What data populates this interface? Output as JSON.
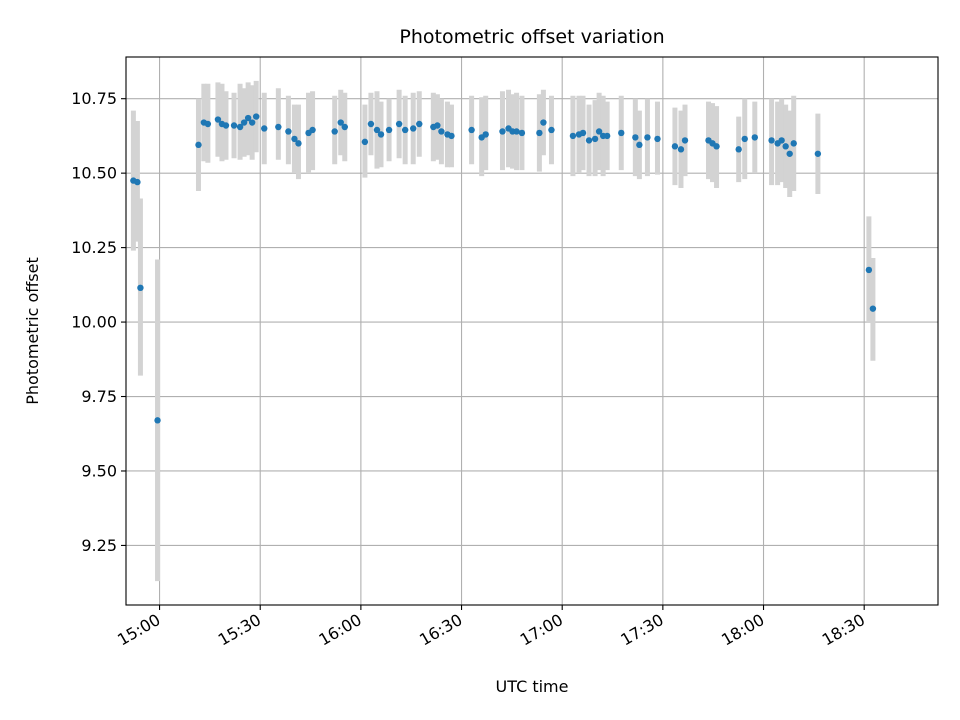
{
  "chart_data": {
    "type": "scatter",
    "title": "Photometric offset variation",
    "xlabel": "UTC time",
    "ylabel": "Photometric offset",
    "grid": true,
    "xlim": [
      "14:50",
      "18:52"
    ],
    "ylim": [
      9.05,
      10.89
    ],
    "x_ticks": [
      "15:00",
      "15:30",
      "16:00",
      "16:30",
      "17:00",
      "17:30",
      "18:00",
      "18:30"
    ],
    "y_ticks": [
      "9.25",
      "9.50",
      "9.75",
      "10.00",
      "10.25",
      "10.50",
      "10.75"
    ],
    "colors": {
      "point": "#1f77b4",
      "errorbar": "#d3d3d3",
      "grid": "#b0b0b0"
    },
    "series": [
      {
        "points": [
          {
            "t": "14:52:12",
            "y": 10.475,
            "lo": 10.24,
            "hi": 10.71
          },
          {
            "t": "14:53:24",
            "y": 10.47,
            "lo": 10.27,
            "hi": 10.675
          },
          {
            "t": "14:54:18",
            "y": 10.115,
            "lo": 9.82,
            "hi": 10.415
          },
          {
            "t": "14:59:24",
            "y": 9.67,
            "lo": 9.13,
            "hi": 10.21
          },
          {
            "t": "15:11:36",
            "y": 10.595,
            "lo": 10.44,
            "hi": 10.75
          },
          {
            "t": "15:13:12",
            "y": 10.67,
            "lo": 10.54,
            "hi": 10.8
          },
          {
            "t": "15:14:24",
            "y": 10.665,
            "lo": 10.535,
            "hi": 10.8
          },
          {
            "t": "15:17:24",
            "y": 10.68,
            "lo": 10.555,
            "hi": 10.805
          },
          {
            "t": "15:18:36",
            "y": 10.665,
            "lo": 10.54,
            "hi": 10.8
          },
          {
            "t": "15:19:48",
            "y": 10.66,
            "lo": 10.545,
            "hi": 10.775
          },
          {
            "t": "15:22:12",
            "y": 10.66,
            "lo": 10.55,
            "hi": 10.77
          },
          {
            "t": "15:24:00",
            "y": 10.655,
            "lo": 10.545,
            "hi": 10.8
          },
          {
            "t": "15:25:12",
            "y": 10.67,
            "lo": 10.555,
            "hi": 10.785
          },
          {
            "t": "15:26:24",
            "y": 10.685,
            "lo": 10.56,
            "hi": 10.805
          },
          {
            "t": "15:27:36",
            "y": 10.67,
            "lo": 10.545,
            "hi": 10.795
          },
          {
            "t": "15:28:48",
            "y": 10.69,
            "lo": 10.57,
            "hi": 10.81
          },
          {
            "t": "15:31:12",
            "y": 10.65,
            "lo": 10.53,
            "hi": 10.77
          },
          {
            "t": "15:35:24",
            "y": 10.655,
            "lo": 10.545,
            "hi": 10.785
          },
          {
            "t": "15:38:24",
            "y": 10.64,
            "lo": 10.53,
            "hi": 10.76
          },
          {
            "t": "15:40:12",
            "y": 10.615,
            "lo": 10.5,
            "hi": 10.73
          },
          {
            "t": "15:41:24",
            "y": 10.6,
            "lo": 10.48,
            "hi": 10.73
          },
          {
            "t": "15:44:24",
            "y": 10.635,
            "lo": 10.5,
            "hi": 10.77
          },
          {
            "t": "15:45:36",
            "y": 10.645,
            "lo": 10.51,
            "hi": 10.775
          },
          {
            "t": "15:52:12",
            "y": 10.64,
            "lo": 10.53,
            "hi": 10.76
          },
          {
            "t": "15:54:00",
            "y": 10.67,
            "lo": 10.56,
            "hi": 10.78
          },
          {
            "t": "15:55:12",
            "y": 10.655,
            "lo": 10.54,
            "hi": 10.77
          },
          {
            "t": "16:01:12",
            "y": 10.605,
            "lo": 10.485,
            "hi": 10.73
          },
          {
            "t": "16:03:00",
            "y": 10.665,
            "lo": 10.56,
            "hi": 10.77
          },
          {
            "t": "16:04:48",
            "y": 10.645,
            "lo": 10.515,
            "hi": 10.775
          },
          {
            "t": "16:06:00",
            "y": 10.63,
            "lo": 10.52,
            "hi": 10.74
          },
          {
            "t": "16:08:24",
            "y": 10.645,
            "lo": 10.54,
            "hi": 10.75
          },
          {
            "t": "16:11:24",
            "y": 10.665,
            "lo": 10.55,
            "hi": 10.78
          },
          {
            "t": "16:13:12",
            "y": 10.645,
            "lo": 10.53,
            "hi": 10.76
          },
          {
            "t": "16:15:36",
            "y": 10.65,
            "lo": 10.53,
            "hi": 10.77
          },
          {
            "t": "16:17:24",
            "y": 10.665,
            "lo": 10.555,
            "hi": 10.775
          },
          {
            "t": "16:21:36",
            "y": 10.655,
            "lo": 10.54,
            "hi": 10.77
          },
          {
            "t": "16:22:48",
            "y": 10.66,
            "lo": 10.545,
            "hi": 10.765
          },
          {
            "t": "16:24:00",
            "y": 10.64,
            "lo": 10.53,
            "hi": 10.75
          },
          {
            "t": "16:25:48",
            "y": 10.63,
            "lo": 10.52,
            "hi": 10.74
          },
          {
            "t": "16:27:00",
            "y": 10.625,
            "lo": 10.52,
            "hi": 10.73
          },
          {
            "t": "16:33:00",
            "y": 10.645,
            "lo": 10.53,
            "hi": 10.76
          },
          {
            "t": "16:36:00",
            "y": 10.62,
            "lo": 10.49,
            "hi": 10.755
          },
          {
            "t": "16:37:12",
            "y": 10.63,
            "lo": 10.51,
            "hi": 10.76
          },
          {
            "t": "16:42:12",
            "y": 10.64,
            "lo": 10.51,
            "hi": 10.775
          },
          {
            "t": "16:44:00",
            "y": 10.65,
            "lo": 10.52,
            "hi": 10.78
          },
          {
            "t": "16:45:12",
            "y": 10.64,
            "lo": 10.515,
            "hi": 10.765
          },
          {
            "t": "16:46:24",
            "y": 10.64,
            "lo": 10.51,
            "hi": 10.77
          },
          {
            "t": "16:48:00",
            "y": 10.635,
            "lo": 10.51,
            "hi": 10.76
          },
          {
            "t": "16:53:12",
            "y": 10.635,
            "lo": 10.505,
            "hi": 10.765
          },
          {
            "t": "16:54:24",
            "y": 10.67,
            "lo": 10.56,
            "hi": 10.78
          },
          {
            "t": "16:56:48",
            "y": 10.645,
            "lo": 10.53,
            "hi": 10.76
          },
          {
            "t": "17:03:12",
            "y": 10.625,
            "lo": 10.49,
            "hi": 10.76
          },
          {
            "t": "17:05:00",
            "y": 10.63,
            "lo": 10.5,
            "hi": 10.76
          },
          {
            "t": "17:06:12",
            "y": 10.635,
            "lo": 10.51,
            "hi": 10.76
          },
          {
            "t": "17:08:00",
            "y": 10.61,
            "lo": 10.49,
            "hi": 10.73
          },
          {
            "t": "17:09:48",
            "y": 10.615,
            "lo": 10.49,
            "hi": 10.745
          },
          {
            "t": "17:11:00",
            "y": 10.64,
            "lo": 10.51,
            "hi": 10.77
          },
          {
            "t": "17:12:12",
            "y": 10.625,
            "lo": 10.49,
            "hi": 10.76
          },
          {
            "t": "17:13:24",
            "y": 10.625,
            "lo": 10.51,
            "hi": 10.74
          },
          {
            "t": "17:17:36",
            "y": 10.635,
            "lo": 10.51,
            "hi": 10.76
          },
          {
            "t": "17:21:48",
            "y": 10.62,
            "lo": 10.49,
            "hi": 10.75
          },
          {
            "t": "17:23:00",
            "y": 10.595,
            "lo": 10.48,
            "hi": 10.71
          },
          {
            "t": "17:25:24",
            "y": 10.62,
            "lo": 10.49,
            "hi": 10.75
          },
          {
            "t": "17:28:24",
            "y": 10.615,
            "lo": 10.495,
            "hi": 10.74
          },
          {
            "t": "17:33:36",
            "y": 10.59,
            "lo": 10.46,
            "hi": 10.72
          },
          {
            "t": "17:35:24",
            "y": 10.58,
            "lo": 10.45,
            "hi": 10.71
          },
          {
            "t": "17:36:36",
            "y": 10.61,
            "lo": 10.49,
            "hi": 10.73
          },
          {
            "t": "17:43:36",
            "y": 10.61,
            "lo": 10.48,
            "hi": 10.74
          },
          {
            "t": "17:44:48",
            "y": 10.6,
            "lo": 10.47,
            "hi": 10.735
          },
          {
            "t": "17:46:00",
            "y": 10.59,
            "lo": 10.45,
            "hi": 10.725
          },
          {
            "t": "17:52:36",
            "y": 10.58,
            "lo": 10.47,
            "hi": 10.69
          },
          {
            "t": "17:54:24",
            "y": 10.615,
            "lo": 10.48,
            "hi": 10.75
          },
          {
            "t": "17:57:24",
            "y": 10.62,
            "lo": 10.5,
            "hi": 10.74
          },
          {
            "t": "18:02:24",
            "y": 10.61,
            "lo": 10.46,
            "hi": 10.75
          },
          {
            "t": "18:04:12",
            "y": 10.6,
            "lo": 10.46,
            "hi": 10.74
          },
          {
            "t": "18:05:24",
            "y": 10.61,
            "lo": 10.47,
            "hi": 10.75
          },
          {
            "t": "18:06:36",
            "y": 10.59,
            "lo": 10.45,
            "hi": 10.73
          },
          {
            "t": "18:07:48",
            "y": 10.565,
            "lo": 10.42,
            "hi": 10.71
          },
          {
            "t": "18:09:00",
            "y": 10.6,
            "lo": 10.44,
            "hi": 10.76
          },
          {
            "t": "18:16:12",
            "y": 10.565,
            "lo": 10.43,
            "hi": 10.7
          },
          {
            "t": "18:31:24",
            "y": 10.175,
            "lo": 10.0,
            "hi": 10.355
          },
          {
            "t": "18:32:36",
            "y": 10.045,
            "lo": 9.87,
            "hi": 10.215
          }
        ]
      }
    ]
  }
}
